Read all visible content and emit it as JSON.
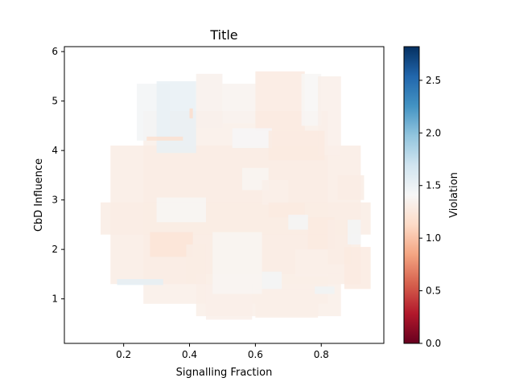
{
  "chart_data": {
    "type": "heatmap",
    "title": "Title",
    "xlabel": "Signalling Fraction",
    "ylabel": "CbD Influence",
    "xlim": [
      0.02,
      0.99
    ],
    "ylim": [
      0.1,
      6.1
    ],
    "x_ticks": [
      "0.2",
      "0.4",
      "0.6",
      "0.8"
    ],
    "x_tick_values": [
      0.2,
      0.4,
      0.6,
      0.8
    ],
    "y_ticks": [
      "1",
      "2",
      "3",
      "4",
      "5",
      "6"
    ],
    "y_tick_values": [
      1,
      2,
      3,
      4,
      5,
      6
    ],
    "colorbar": {
      "label": "Violation",
      "range": [
        0,
        2.82
      ],
      "cmap": "RdBu",
      "ticks": [
        "0.0",
        "0.5",
        "1.0",
        "1.5",
        "2.0",
        "2.5"
      ],
      "tick_values": [
        0,
        0.5,
        1.0,
        1.5,
        2.0,
        2.5
      ]
    },
    "grid": false,
    "rectangles": [
      {
        "x0": 0.26,
        "x1": 0.82,
        "y0": 0.9,
        "y1": 4.8,
        "v": 1.32
      },
      {
        "x0": 0.16,
        "x1": 0.92,
        "y0": 1.3,
        "y1": 4.1,
        "v": 1.3
      },
      {
        "x0": 0.13,
        "x1": 0.95,
        "y0": 2.3,
        "y1": 2.95,
        "v": 1.3
      },
      {
        "x0": 0.42,
        "x1": 0.86,
        "y0": 0.65,
        "y1": 1.5,
        "v": 1.32
      },
      {
        "x0": 0.45,
        "x1": 0.59,
        "y0": 0.58,
        "y1": 1.3,
        "v": 1.33
      },
      {
        "x0": 0.6,
        "x1": 0.79,
        "y0": 0.62,
        "y1": 1.2,
        "v": 1.32
      },
      {
        "x0": 0.24,
        "x1": 0.34,
        "y0": 4.2,
        "y1": 5.35,
        "v": 1.45
      },
      {
        "x0": 0.3,
        "x1": 0.42,
        "y0": 3.95,
        "y1": 5.4,
        "v": 1.52
      },
      {
        "x0": 0.42,
        "x1": 0.5,
        "y0": 4.45,
        "y1": 5.55,
        "v": 1.34
      },
      {
        "x0": 0.5,
        "x1": 0.6,
        "y0": 4.55,
        "y1": 5.35,
        "v": 1.36
      },
      {
        "x0": 0.6,
        "x1": 0.75,
        "y0": 4.4,
        "y1": 5.6,
        "v": 1.28
      },
      {
        "x0": 0.74,
        "x1": 0.8,
        "y0": 4.5,
        "y1": 5.55,
        "v": 1.4
      },
      {
        "x0": 0.79,
        "x1": 0.86,
        "y0": 3.9,
        "y1": 5.5,
        "v": 1.33
      },
      {
        "x0": 0.27,
        "x1": 0.38,
        "y0": 4.2,
        "y1": 4.28,
        "v": 1.18
      },
      {
        "x0": 0.4,
        "x1": 0.41,
        "y0": 4.65,
        "y1": 4.85,
        "v": 1.15
      },
      {
        "x0": 0.53,
        "x1": 0.65,
        "y0": 4.05,
        "y1": 4.45,
        "v": 1.42
      },
      {
        "x0": 0.64,
        "x1": 0.81,
        "y0": 3.8,
        "y1": 4.4,
        "v": 1.28
      },
      {
        "x0": 0.3,
        "x1": 0.45,
        "y0": 2.55,
        "y1": 3.05,
        "v": 1.4
      },
      {
        "x0": 0.56,
        "x1": 0.64,
        "y0": 3.2,
        "y1": 3.65,
        "v": 1.38
      },
      {
        "x0": 0.62,
        "x1": 0.7,
        "y0": 2.9,
        "y1": 3.4,
        "v": 1.33
      },
      {
        "x0": 0.64,
        "x1": 0.75,
        "y0": 2.65,
        "y1": 2.95,
        "v": 1.28
      },
      {
        "x0": 0.7,
        "x1": 0.76,
        "y0": 2.4,
        "y1": 2.7,
        "v": 1.44
      },
      {
        "x0": 0.76,
        "x1": 0.84,
        "y0": 2.0,
        "y1": 2.65,
        "v": 1.28
      },
      {
        "x0": 0.85,
        "x1": 0.93,
        "y0": 3.0,
        "y1": 3.5,
        "v": 1.3
      },
      {
        "x0": 0.28,
        "x1": 0.41,
        "y0": 1.85,
        "y1": 2.35,
        "v": 1.22
      },
      {
        "x0": 0.47,
        "x1": 0.62,
        "y0": 1.1,
        "y1": 2.35,
        "v": 1.38
      },
      {
        "x0": 0.62,
        "x1": 0.68,
        "y0": 1.2,
        "y1": 1.55,
        "v": 1.45
      },
      {
        "x0": 0.72,
        "x1": 0.82,
        "y0": 1.45,
        "y1": 2.0,
        "v": 1.33
      },
      {
        "x0": 0.82,
        "x1": 0.89,
        "y0": 1.7,
        "y1": 2.6,
        "v": 1.3
      },
      {
        "x0": 0.88,
        "x1": 0.92,
        "y0": 2.1,
        "y1": 2.6,
        "v": 1.45
      },
      {
        "x0": 0.18,
        "x1": 0.32,
        "y0": 1.28,
        "y1": 1.4,
        "v": 1.55
      },
      {
        "x0": 0.78,
        "x1": 0.84,
        "y0": 1.1,
        "y1": 1.25,
        "v": 1.48
      },
      {
        "x0": 0.39,
        "x1": 0.45,
        "y0": 1.3,
        "y1": 2.1,
        "v": 1.3
      },
      {
        "x0": 0.87,
        "x1": 0.95,
        "y0": 1.2,
        "y1": 2.05,
        "v": 1.28
      }
    ]
  }
}
